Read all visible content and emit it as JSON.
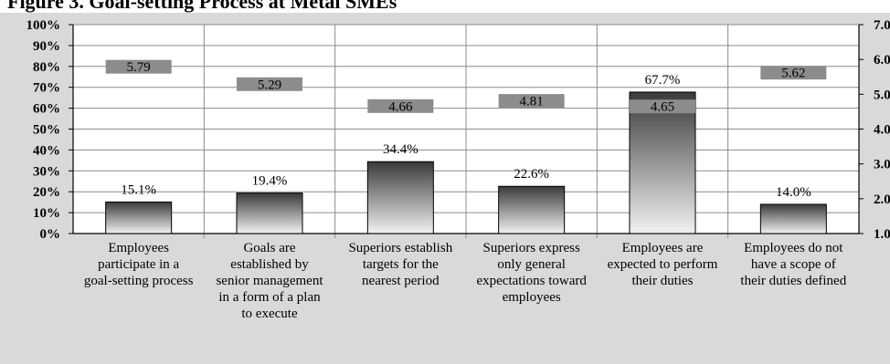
{
  "title": "Figure 3. Goal-setting Process at Metal SMEs",
  "chart_data": {
    "type": "bar",
    "categories": [
      [
        "Employees",
        "participate in a",
        "goal-setting process"
      ],
      [
        "Goals are",
        "established by",
        "senior management",
        "in a form of a plan",
        "to execute"
      ],
      [
        "Superiors establish",
        "targets for the",
        "nearest period"
      ],
      [
        "Superiors express",
        "only general",
        "expectations toward",
        "employees"
      ],
      [
        "Employees are",
        "expected to perform",
        "their duties"
      ],
      [
        "Employees do not",
        "have a scope of",
        "their duties defined"
      ]
    ],
    "series": [
      {
        "values": [
          15.1,
          19.4,
          34.4,
          22.6,
          67.7,
          14.0
        ],
        "labels": [
          "15.1%",
          "19.4%",
          "34.4%",
          "22.6%",
          "67.7%",
          "14.0%"
        ],
        "axis": "left"
      },
      {
        "values": [
          5.79,
          5.29,
          4.66,
          4.81,
          4.65,
          5.62
        ],
        "labels": [
          "5.79",
          "5.29",
          "4.66",
          "4.81",
          "4.65",
          "5.62"
        ],
        "axis": "right"
      }
    ],
    "y_left": {
      "range": [
        0,
        100
      ],
      "ticks": [
        "0%",
        "10%",
        "20%",
        "30%",
        "40%",
        "50%",
        "60%",
        "70%",
        "80%",
        "90%",
        "100%"
      ]
    },
    "y_right": {
      "range": [
        1.0,
        7.0
      ],
      "ticks": [
        "1.0",
        "2.0",
        "3.0",
        "4.0",
        "5.0",
        "6.0",
        "7.0"
      ]
    },
    "grid": true
  },
  "colors": {
    "plot_bg": "#ffffff",
    "outer_bg": "#d9d9d9",
    "marker": "#8c8c8c",
    "bar_top": "#3a3a3a",
    "bar_bottom": "#f2f2f2"
  }
}
